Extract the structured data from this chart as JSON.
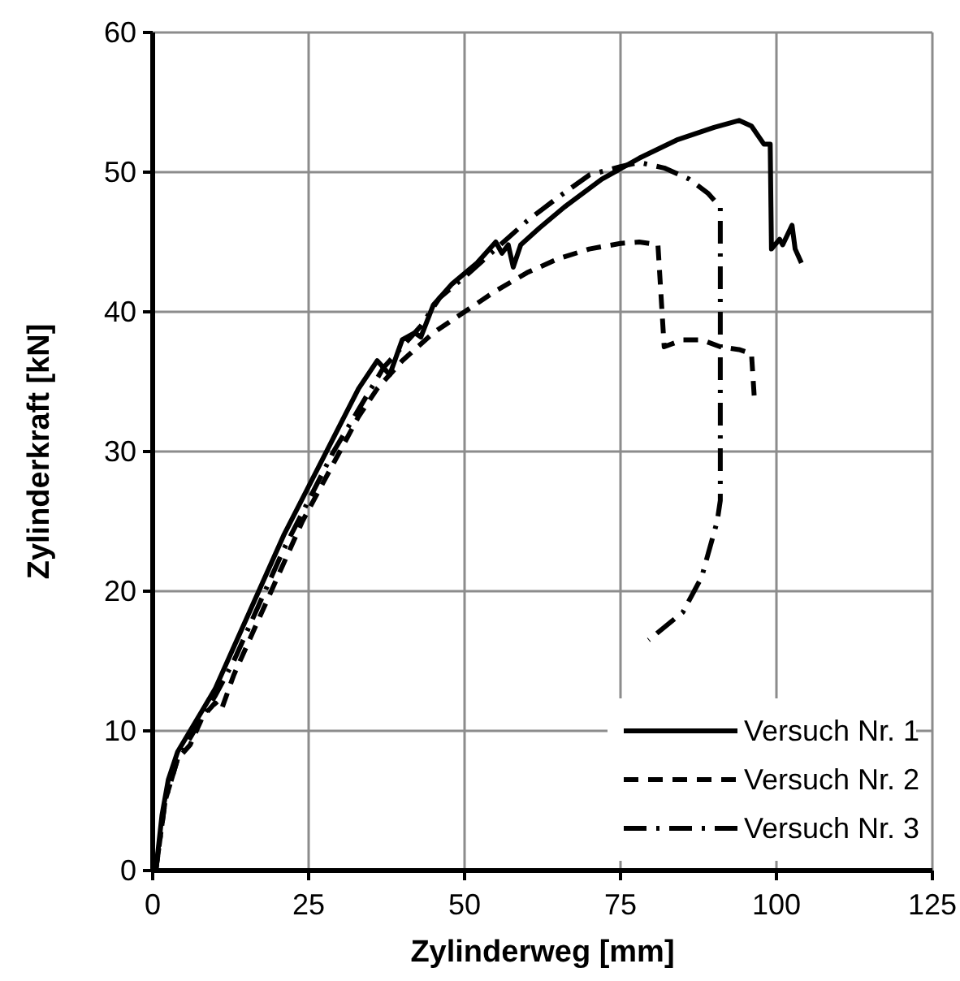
{
  "chart_data": {
    "type": "line",
    "xlabel": "Zylinderweg [mm]",
    "ylabel": "Zylinderkraft [kN]",
    "xlim": [
      0,
      125
    ],
    "ylim": [
      0,
      60
    ],
    "xticks": [
      0,
      25,
      50,
      75,
      100,
      125
    ],
    "yticks": [
      0,
      10,
      20,
      30,
      40,
      50,
      60
    ],
    "grid": true,
    "legend": "bottom right",
    "marker": "none",
    "series": [
      {
        "name": "Versuch Nr. 1",
        "color": "#000000",
        "line_style": "solid",
        "x": [
          0.5,
          1.5,
          2.5,
          4,
          6,
          8,
          10,
          13,
          17,
          21,
          25,
          29,
          33,
          36,
          37,
          38,
          40,
          42,
          43,
          45,
          48,
          52,
          55,
          56,
          57,
          57.8,
          59,
          62,
          66,
          72,
          78,
          84,
          90,
          94,
          96,
          98,
          99,
          99.2,
          100.5,
          101,
          102.5,
          103,
          104
        ],
        "values": [
          0,
          4,
          6.5,
          8.5,
          10,
          11.5,
          13,
          16,
          20,
          24,
          27.5,
          31,
          34.5,
          36.5,
          36,
          35.5,
          38,
          38.5,
          38.2,
          40.5,
          42,
          43.5,
          45,
          44.2,
          44.8,
          43.2,
          44.8,
          46,
          47.5,
          49.5,
          51,
          52.3,
          53.2,
          53.7,
          53.3,
          52,
          52,
          44.5,
          45.2,
          44.8,
          46.2,
          44.5,
          43.5
        ]
      },
      {
        "name": "Versuch Nr. 2",
        "color": "#000000",
        "line_style": "dashed",
        "x": [
          0.5,
          2,
          4,
          6,
          8,
          10,
          11,
          13,
          15,
          17,
          19,
          21,
          24,
          27,
          30,
          33,
          36,
          40,
          45,
          50,
          55,
          60,
          65,
          70,
          75,
          78,
          81,
          82,
          85,
          88,
          91,
          94,
          96,
          96.5
        ],
        "values": [
          0,
          5,
          8,
          9,
          11,
          12,
          11.5,
          14,
          16,
          18,
          20,
          22,
          25,
          27.5,
          30,
          32.5,
          34.5,
          36.5,
          38.5,
          40,
          41.5,
          42.8,
          43.8,
          44.5,
          44.9,
          45,
          44.8,
          37.5,
          38,
          38,
          37.5,
          37.3,
          37,
          33.5
        ]
      },
      {
        "name": "Versuch Nr. 3",
        "color": "#000000",
        "line_style": "dashdot",
        "x": [
          0.5,
          2,
          4,
          6,
          8,
          10,
          13,
          17,
          21,
          25,
          29,
          33,
          37,
          40,
          43,
          46,
          50,
          55,
          60,
          65,
          70,
          75,
          78,
          82,
          86,
          89,
          91,
          91,
          91,
          91,
          90.5,
          88,
          85,
          79.5
        ],
        "values": [
          0,
          5,
          8,
          9.5,
          11,
          12.5,
          15,
          19,
          23,
          26.5,
          30,
          33,
          36,
          37.5,
          39,
          41,
          42.5,
          44.5,
          46.5,
          48.2,
          49.8,
          50.4,
          50.7,
          50.3,
          49.5,
          48.5,
          47.5,
          40,
          30,
          26.5,
          25,
          21,
          18.5,
          16.5
        ]
      }
    ]
  }
}
